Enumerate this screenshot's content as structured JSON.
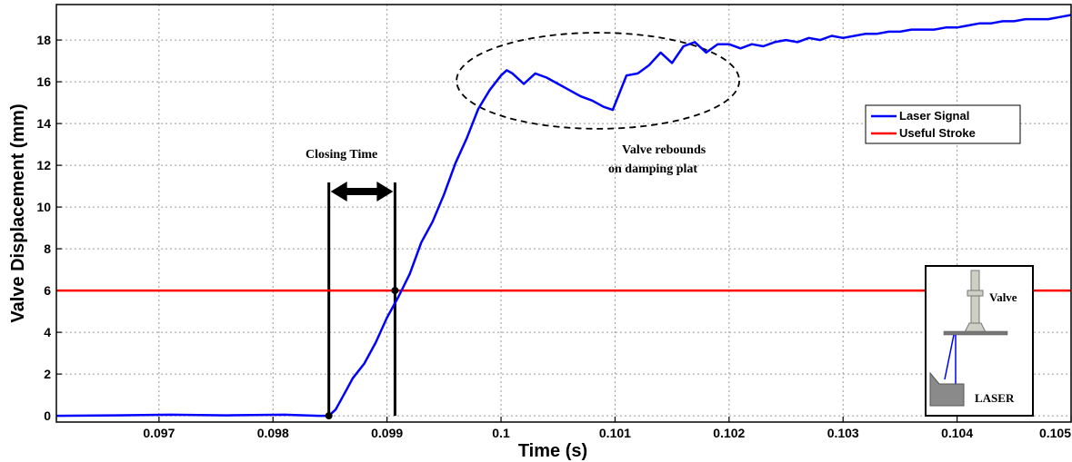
{
  "chart_data": {
    "type": "line",
    "xlabel": "Time (s)",
    "ylabel": "Valve Displacement (mm)",
    "xlim": [
      0.0961,
      0.105
    ],
    "ylim": [
      -0.3,
      19.7
    ],
    "xticks": [
      0.097,
      0.098,
      0.099,
      0.1,
      0.101,
      0.102,
      0.103,
      0.104,
      0.105
    ],
    "xtick_labels": [
      "0.097",
      "0.098",
      "0.099",
      "0.1",
      "0.101",
      "0.102",
      "0.103",
      "0.104",
      "0.105"
    ],
    "yticks": [
      0,
      2,
      4,
      6,
      8,
      10,
      12,
      14,
      16,
      18
    ],
    "ytick_labels": [
      "0",
      "2",
      "4",
      "6",
      "8",
      "10",
      "12",
      "14",
      "16",
      "18"
    ],
    "grid": true,
    "legend_position": "right",
    "series": [
      {
        "name": "Laser Signal",
        "color": "#0000ff",
        "x": [
          0.0961,
          0.0966,
          0.0971,
          0.0976,
          0.0981,
          0.0984,
          0.09849,
          0.09855,
          0.0986,
          0.09865,
          0.0987,
          0.0988,
          0.0989,
          0.099,
          0.09905,
          0.0991,
          0.0992,
          0.0993,
          0.0994,
          0.0995,
          0.0996,
          0.0997,
          0.0998,
          0.0999,
          0.1,
          0.10005,
          0.1001,
          0.1002,
          0.1003,
          0.1004,
          0.1005,
          0.1006,
          0.1007,
          0.1008,
          0.1009,
          0.10098,
          0.1011,
          0.1012,
          0.1013,
          0.1014,
          0.1015,
          0.1016,
          0.1017,
          0.1018,
          0.1019,
          0.102,
          0.1021,
          0.1022,
          0.1023,
          0.1024,
          0.1025,
          0.1026,
          0.1027,
          0.1028,
          0.1029,
          0.103,
          0.1031,
          0.1032,
          0.1033,
          0.1034,
          0.1035,
          0.1036,
          0.1037,
          0.1038,
          0.1039,
          0.104,
          0.1041,
          0.1042,
          0.1043,
          0.1044,
          0.1045,
          0.1046,
          0.1047,
          0.1048,
          0.1049,
          0.105
        ],
        "y": [
          0.0,
          0.02,
          0.05,
          0.02,
          0.05,
          0.0,
          0.0,
          0.3,
          0.8,
          1.3,
          1.8,
          2.5,
          3.5,
          4.7,
          5.2,
          5.7,
          6.8,
          8.3,
          9.3,
          10.6,
          12.1,
          13.3,
          14.7,
          15.6,
          16.3,
          16.55,
          16.4,
          15.9,
          16.4,
          16.2,
          15.9,
          15.6,
          15.3,
          15.1,
          14.8,
          14.65,
          16.3,
          16.4,
          16.8,
          17.4,
          16.9,
          17.7,
          17.9,
          17.4,
          17.8,
          17.8,
          17.6,
          17.8,
          17.7,
          17.9,
          18.0,
          17.9,
          18.1,
          18.0,
          18.2,
          18.1,
          18.2,
          18.3,
          18.3,
          18.4,
          18.4,
          18.5,
          18.5,
          18.5,
          18.6,
          18.6,
          18.7,
          18.8,
          18.8,
          18.9,
          18.9,
          19.0,
          19.0,
          19.0,
          19.1,
          19.2
        ]
      },
      {
        "name": "Useful Stroke",
        "color": "#ff0000",
        "x": [
          0.0961,
          0.105
        ],
        "y": [
          6,
          6
        ]
      }
    ],
    "annotations": {
      "closing_time": "Closing Time",
      "rebound_line1": "Valve rebounds",
      "rebound_line2": "on damping  plat",
      "closing_start_x": 0.09849,
      "closing_end_x": 0.09907,
      "rebound_ellipse_center": [
        0.10085,
        16.05
      ],
      "rebound_ellipse_radii": [
        0.00124,
        2.3
      ]
    },
    "inset": {
      "valve_label": "Valve",
      "laser_label": "LASER"
    }
  }
}
